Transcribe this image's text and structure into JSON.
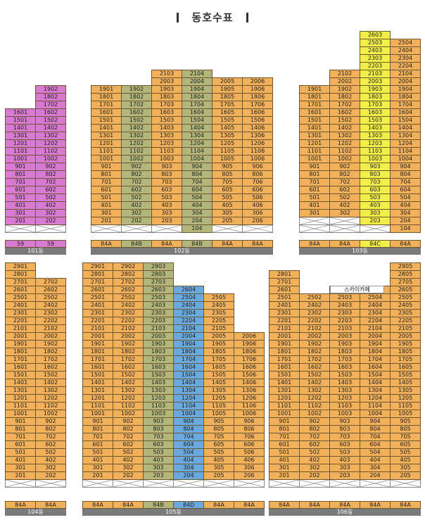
{
  "title": "동호수표",
  "skylabel": "스카이카페",
  "colors": {
    "orange": "#f2b05a",
    "pink": "#d87ad0",
    "olive": "#b3b57a",
    "yellow": "#f2ef48",
    "blue": "#6aa9de"
  },
  "buildings": [
    {
      "name": "101동",
      "lines": [
        {
          "suffix": "01",
          "from": 2,
          "to": 16,
          "color": "pink",
          "type": "59",
          "empty": 1
        },
        {
          "suffix": "02",
          "from": 2,
          "to": 19,
          "color": "pink",
          "type": "59",
          "empty": 1
        }
      ]
    },
    {
      "name": "102동",
      "lines": [
        {
          "suffix": "01",
          "from": 2,
          "to": 19,
          "color": "orange",
          "type": "84A",
          "empty": 1
        },
        {
          "suffix": "02",
          "from": 2,
          "to": 19,
          "color": "olive",
          "type": "84B",
          "empty": 1
        },
        {
          "suffix": "03",
          "from": 2,
          "to": 21,
          "color": "orange",
          "type": "84A",
          "empty": 1
        },
        {
          "suffix": "04",
          "from": 1,
          "to": 21,
          "color": "olive",
          "type": "84B",
          "empty": 0
        },
        {
          "suffix": "05",
          "from": 2,
          "to": 20,
          "color": "orange",
          "type": "84A",
          "empty": 1
        },
        {
          "suffix": "06",
          "from": 2,
          "to": 20,
          "color": "orange",
          "type": "84A",
          "empty": 1
        }
      ]
    },
    {
      "name": "103동",
      "lines": [
        {
          "suffix": "01",
          "from": 3,
          "to": 19,
          "color": "orange",
          "type": "84A",
          "empty": 2
        },
        {
          "suffix": "02",
          "from": 3,
          "to": 21,
          "color": "orange",
          "type": "84A",
          "empty": 2
        },
        {
          "suffix": "03",
          "from": 2,
          "to": 26,
          "color": "yellow",
          "type": "84C",
          "empty": 1
        },
        {
          "suffix": "04",
          "from": 1,
          "to": 25,
          "color": "orange",
          "type": "84A",
          "empty": 0
        }
      ]
    },
    {
      "name": "104동",
      "lines": [
        {
          "suffix": "01",
          "from": 2,
          "to": 29,
          "color": "orange",
          "type": "84A",
          "empty": 1
        },
        {
          "suffix": "02",
          "from": 2,
          "to": 27,
          "color": "orange",
          "type": "84A",
          "empty": 1
        }
      ]
    },
    {
      "name": "105동",
      "lines": [
        {
          "suffix": "01",
          "from": 2,
          "to": 29,
          "color": "orange",
          "type": "84A",
          "empty": 1
        },
        {
          "suffix": "02",
          "from": 2,
          "to": 29,
          "color": "orange",
          "type": "84A",
          "empty": 1
        },
        {
          "suffix": "03",
          "from": 2,
          "to": 29,
          "color": "olive",
          "type": "84B",
          "empty": 1
        },
        {
          "suffix": "04",
          "from": 2,
          "to": 26,
          "color": "blue",
          "type": "84D",
          "empty": 1
        },
        {
          "suffix": "05",
          "from": 2,
          "to": 25,
          "color": "orange",
          "type": "84A",
          "empty": 1
        },
        {
          "suffix": "06",
          "from": 2,
          "to": 20,
          "color": "orange",
          "type": "84A",
          "empty": 1
        }
      ]
    },
    {
      "name": "106동",
      "lines": [
        {
          "suffix": "01",
          "from": 2,
          "to": 28,
          "color": "orange",
          "type": "84A",
          "empty": 1
        },
        {
          "suffix": "02",
          "from": 2,
          "to": 25,
          "color": "orange",
          "type": "84A",
          "empty": 1
        },
        {
          "suffix": "03",
          "from": 2,
          "to": 26,
          "color": "orange",
          "type": "84A",
          "empty": 1
        },
        {
          "suffix": "04",
          "from": 2,
          "to": 26,
          "color": "orange",
          "type": "84A",
          "empty": 1
        },
        {
          "suffix": "05",
          "from": 2,
          "to": 29,
          "color": "orange",
          "type": "84A",
          "empty": 1
        }
      ]
    }
  ]
}
